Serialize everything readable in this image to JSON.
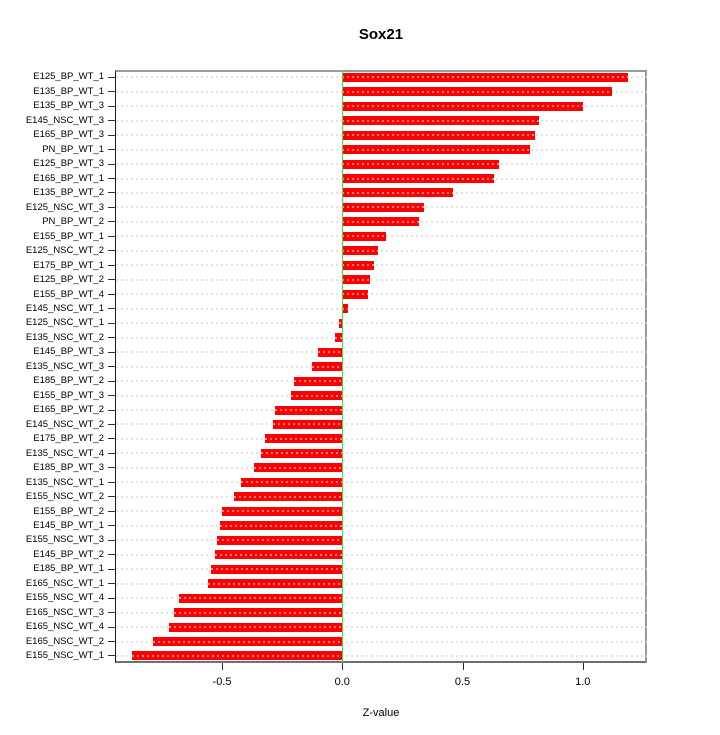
{
  "title": "Sox21",
  "chart_data": {
    "type": "bar",
    "orientation": "horizontal",
    "title": "Sox21",
    "xlabel": "Z-value",
    "categories": [
      "E125_BP_WT_1",
      "E135_BP_WT_1",
      "E135_BP_WT_3",
      "E145_NSC_WT_3",
      "E165_BP_WT_3",
      "PN_BP_WT_1",
      "E125_BP_WT_3",
      "E165_BP_WT_1",
      "E135_BP_WT_2",
      "E125_NSC_WT_3",
      "PN_BP_WT_2",
      "E155_BP_WT_1",
      "E125_NSC_WT_2",
      "E175_BP_WT_1",
      "E125_BP_WT_2",
      "E155_BP_WT_4",
      "E145_NSC_WT_1",
      "E125_NSC_WT_1",
      "E135_NSC_WT_2",
      "E145_BP_WT_3",
      "E135_NSC_WT_3",
      "E185_BP_WT_2",
      "E155_BP_WT_3",
      "E165_BP_WT_2",
      "E145_NSC_WT_2",
      "E175_BP_WT_2",
      "E135_NSC_WT_4",
      "E185_BP_WT_3",
      "E135_NSC_WT_1",
      "E155_NSC_WT_2",
      "E155_BP_WT_2",
      "E145_BP_WT_1",
      "E155_NSC_WT_3",
      "E145_BP_WT_2",
      "E185_BP_WT_1",
      "E165_NSC_WT_1",
      "E155_NSC_WT_4",
      "E165_NSC_WT_3",
      "E165_NSC_WT_4",
      "E165_NSC_WT_2",
      "E155_NSC_WT_1"
    ],
    "values": [
      1.19,
      1.12,
      1.0,
      0.82,
      0.8,
      0.78,
      0.65,
      0.63,
      0.46,
      0.34,
      0.32,
      0.18,
      0.15,
      0.13,
      0.115,
      0.105,
      0.022,
      -0.015,
      -0.03,
      -0.1,
      -0.125,
      -0.2,
      -0.215,
      -0.28,
      -0.29,
      -0.32,
      -0.34,
      -0.365,
      -0.42,
      -0.45,
      -0.5,
      -0.51,
      -0.52,
      -0.53,
      -0.545,
      -0.56,
      -0.68,
      -0.7,
      -0.72,
      -0.785,
      -0.875
    ],
    "xlim": [
      -0.945,
      1.267
    ],
    "xticks": [
      -0.5,
      0.0,
      0.5,
      1.0
    ],
    "xtick_labels": [
      "-0.5",
      "0.0",
      "0.5",
      "1.0"
    ],
    "zero_line": 0.0,
    "grid": "horizontal dashed line per category",
    "legend": "none",
    "bar_color": "#fb0101",
    "zero_line_color": "#33e833",
    "grid_color": "#e3e3e3"
  }
}
